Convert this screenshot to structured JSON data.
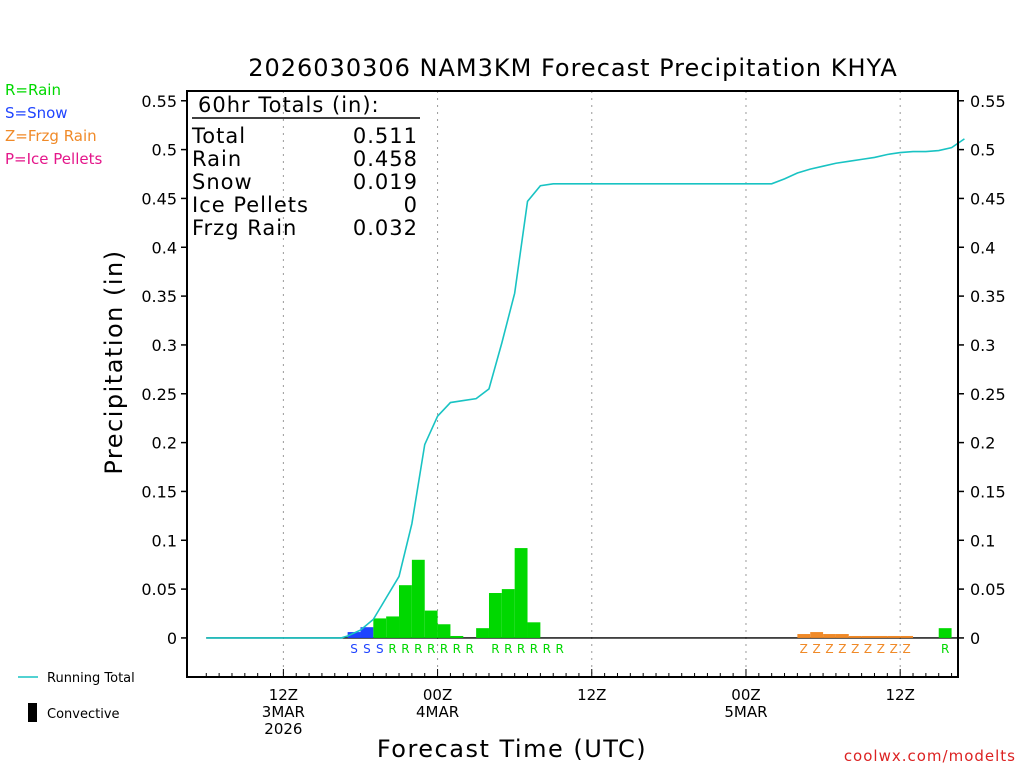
{
  "chart_data": {
    "type": "bar",
    "title": "2026030306 NAM3KM Forecast Precipitation KHYA",
    "xlabel": "Forecast Time (UTC)",
    "ylabel": "Precipitation (in)",
    "ylim": [
      -0.04,
      0.56
    ],
    "xlim": [
      -1.5,
      58.5
    ],
    "yticks": [
      0,
      0.05,
      0.1,
      0.15,
      0.2,
      0.25,
      0.3,
      0.35,
      0.4,
      0.45,
      0.5,
      0.55
    ],
    "ytick_labels": [
      "0",
      "0.05",
      "0.1",
      "0.15",
      "0.2",
      "0.25",
      "0.3",
      "0.35",
      "0.4",
      "0.45",
      "0.5",
      "0.55"
    ],
    "xticks": [
      {
        "hour": 6,
        "lines": [
          "12Z",
          "3MAR",
          "2026"
        ]
      },
      {
        "hour": 18,
        "lines": [
          "00Z",
          "4MAR"
        ]
      },
      {
        "hour": 30,
        "lines": [
          "12Z"
        ]
      },
      {
        "hour": 42,
        "lines": [
          "00Z",
          "5MAR"
        ]
      },
      {
        "hour": 54,
        "lines": [
          "12Z"
        ]
      }
    ],
    "grid_hours": [
      6,
      18,
      30,
      42,
      54
    ],
    "colors": {
      "rain": "#00d800",
      "snow": "#1f44ff",
      "frzg": "#f08a28",
      "ice": "#e4168a",
      "running": "#19c3c3",
      "convective": "#000000"
    },
    "bars": [
      {
        "hour": 12,
        "value": 0.006,
        "type": "snow"
      },
      {
        "hour": 13,
        "value": 0.011,
        "type": "snow"
      },
      {
        "hour": 14,
        "value": 0.02,
        "type": "rain"
      },
      {
        "hour": 15,
        "value": 0.022,
        "type": "rain"
      },
      {
        "hour": 16,
        "value": 0.054,
        "type": "rain"
      },
      {
        "hour": 17,
        "value": 0.08,
        "type": "rain"
      },
      {
        "hour": 18,
        "value": 0.028,
        "type": "rain"
      },
      {
        "hour": 19,
        "value": 0.014,
        "type": "rain"
      },
      {
        "hour": 20,
        "value": 0.002,
        "type": "rain"
      },
      {
        "hour": 22,
        "value": 0.01,
        "type": "rain"
      },
      {
        "hour": 23,
        "value": 0.046,
        "type": "rain"
      },
      {
        "hour": 24,
        "value": 0.05,
        "type": "rain"
      },
      {
        "hour": 25,
        "value": 0.092,
        "type": "rain"
      },
      {
        "hour": 26,
        "value": 0.016,
        "type": "rain"
      },
      {
        "hour": 47,
        "value": 0.004,
        "type": "frzg"
      },
      {
        "hour": 48,
        "value": 0.006,
        "type": "frzg"
      },
      {
        "hour": 49,
        "value": 0.004,
        "type": "frzg"
      },
      {
        "hour": 50,
        "value": 0.004,
        "type": "frzg"
      },
      {
        "hour": 51,
        "value": 0.002,
        "type": "frzg"
      },
      {
        "hour": 52,
        "value": 0.002,
        "type": "frzg"
      },
      {
        "hour": 53,
        "value": 0.002,
        "type": "frzg"
      },
      {
        "hour": 54,
        "value": 0.002,
        "type": "frzg"
      },
      {
        "hour": 55,
        "value": 0.002,
        "type": "frzg"
      },
      {
        "hour": 58,
        "value": 0.01,
        "type": "rain"
      }
    ],
    "precip_type_labels": [
      {
        "hour": 12,
        "letter": "S",
        "type": "snow"
      },
      {
        "hour": 13,
        "letter": "S",
        "type": "snow"
      },
      {
        "hour": 14,
        "letter": "S",
        "type": "snow"
      },
      {
        "hour": 15,
        "letter": "R",
        "type": "rain"
      },
      {
        "hour": 16,
        "letter": "R",
        "type": "rain"
      },
      {
        "hour": 17,
        "letter": "R",
        "type": "rain"
      },
      {
        "hour": 18,
        "letter": "R",
        "type": "rain"
      },
      {
        "hour": 19,
        "letter": "R",
        "type": "rain"
      },
      {
        "hour": 20,
        "letter": "R",
        "type": "rain"
      },
      {
        "hour": 21,
        "letter": "R",
        "type": "rain"
      },
      {
        "hour": 23,
        "letter": "R",
        "type": "rain"
      },
      {
        "hour": 24,
        "letter": "R",
        "type": "rain"
      },
      {
        "hour": 25,
        "letter": "R",
        "type": "rain"
      },
      {
        "hour": 26,
        "letter": "R",
        "type": "rain"
      },
      {
        "hour": 27,
        "letter": "R",
        "type": "rain"
      },
      {
        "hour": 28,
        "letter": "R",
        "type": "rain"
      },
      {
        "hour": 47,
        "letter": "Z",
        "type": "frzg"
      },
      {
        "hour": 48,
        "letter": "Z",
        "type": "frzg"
      },
      {
        "hour": 49,
        "letter": "Z",
        "type": "frzg"
      },
      {
        "hour": 50,
        "letter": "Z",
        "type": "frzg"
      },
      {
        "hour": 51,
        "letter": "Z",
        "type": "frzg"
      },
      {
        "hour": 52,
        "letter": "Z",
        "type": "frzg"
      },
      {
        "hour": 53,
        "letter": "Z",
        "type": "frzg"
      },
      {
        "hour": 54,
        "letter": "Z",
        "type": "frzg"
      },
      {
        "hour": 55,
        "letter": "Z",
        "type": "frzg"
      },
      {
        "hour": 58,
        "letter": "R",
        "type": "rain"
      }
    ],
    "running_total": {
      "x": [
        0,
        10.5,
        11,
        12,
        13,
        14,
        15,
        16,
        17,
        18,
        19,
        20,
        21,
        22,
        23,
        24,
        25,
        26,
        27,
        40,
        44,
        45,
        46,
        47,
        48,
        49,
        50,
        51,
        52,
        53,
        54,
        55,
        56,
        57,
        58,
        59
      ],
      "y": [
        0,
        0,
        0.002,
        0.008,
        0.019,
        0.041,
        0.063,
        0.117,
        0.198,
        0.227,
        0.241,
        0.243,
        0.245,
        0.255,
        0.302,
        0.353,
        0.447,
        0.463,
        0.465,
        0.465,
        0.465,
        0.47,
        0.476,
        0.48,
        0.483,
        0.486,
        0.488,
        0.49,
        0.492,
        0.495,
        0.497,
        0.498,
        0.498,
        0.499,
        0.502,
        0.511
      ]
    },
    "totals_box": {
      "heading": "60hr Totals (in):",
      "rows": [
        {
          "label": "Total",
          "value": "0.511"
        },
        {
          "label": "Rain",
          "value": "0.458"
        },
        {
          "label": "Snow",
          "value": "0.019"
        },
        {
          "label": "Ice Pellets",
          "value": "0"
        },
        {
          "label": "Frzg Rain",
          "value": "0.032"
        }
      ]
    },
    "legend": [
      {
        "text": "R=Rain",
        "type": "rain"
      },
      {
        "text": "S=Snow",
        "type": "snow"
      },
      {
        "text": "Z=Frzg Rain",
        "type": "frzg"
      },
      {
        "text": "P=Ice Pellets",
        "type": "ice"
      }
    ],
    "line_legend": {
      "running_label": "Running Total",
      "convective_label": "Convective"
    },
    "credit": "coolwx.com/modelts"
  }
}
